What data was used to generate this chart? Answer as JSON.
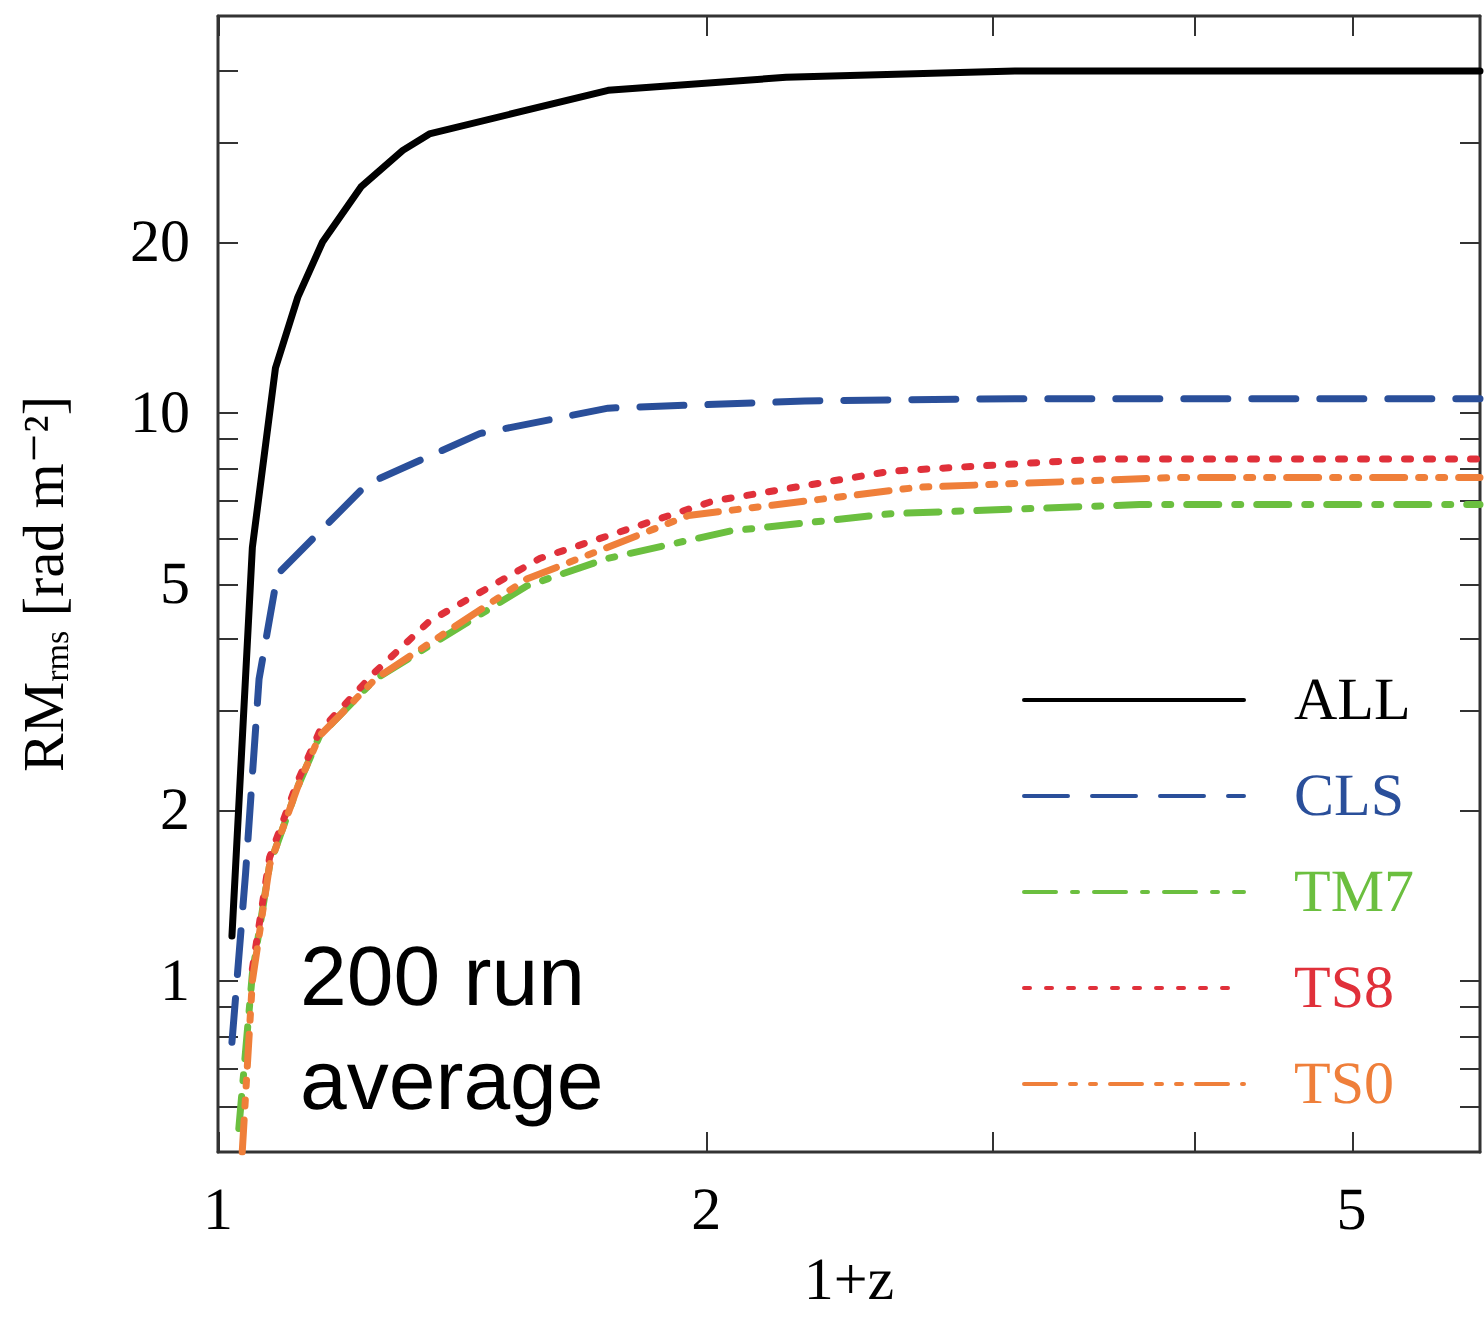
{
  "chart_data": {
    "type": "line",
    "xlabel": "1+z",
    "ylabel": "RM$_{rms}$ [rad m⁻²]",
    "log": "xy",
    "xlim": [
      1,
      6
    ],
    "ylim": [
      0.5,
      50
    ],
    "xticks": [
      1,
      2,
      {
        "value": 3,
        "label": null
      },
      {
        "value": 4,
        "label": null
      },
      5
    ],
    "yticks": [
      {
        "value": 0.6,
        "label": null
      },
      {
        "value": 0.7,
        "label": null
      },
      {
        "value": 0.8,
        "label": null
      },
      {
        "value": 0.9,
        "label": null
      },
      1,
      2,
      {
        "value": 3,
        "label": null
      },
      {
        "value": 4,
        "label": null
      },
      5,
      {
        "value": 6,
        "label": null
      },
      {
        "value": 7,
        "label": null
      },
      {
        "value": 8,
        "label": null
      },
      {
        "value": 9,
        "label": null
      },
      10,
      20,
      {
        "value": 30,
        "label": null
      },
      {
        "value": 40,
        "label": null
      }
    ],
    "grid": false,
    "legend": "bottom right",
    "marker": "none",
    "annotations": [
      "200 run average"
    ],
    "series": [
      {
        "name": "ALL",
        "color": "#000000",
        "line_style": "solid",
        "x": [
          1.02,
          1.05,
          1.085,
          1.12,
          1.16,
          1.225,
          1.3,
          1.35,
          1.74,
          2.24,
          3.1,
          6
        ],
        "values": [
          1.2,
          5.8,
          12,
          16,
          20,
          25,
          29,
          31,
          37,
          39,
          40,
          40
        ]
      },
      {
        "name": "CLS",
        "color": "#2a4f9a",
        "line_style": "dashed",
        "x": [
          1.02,
          1.04,
          1.06,
          1.088,
          1.236,
          1.45,
          1.74,
          2.3,
          3.1,
          6
        ],
        "values": [
          0.78,
          1.55,
          3.4,
          5.2,
          7.5,
          9.2,
          10.2,
          10.5,
          10.6,
          10.6
        ]
      },
      {
        "name": "TM7",
        "color": "#6bbf3f",
        "line_style": "dashdot",
        "x": [
          1.03,
          1.05,
          1.076,
          1.12,
          1.155,
          1.25,
          1.55,
          1.74,
          2.07,
          2.6,
          3.7,
          6
        ],
        "values": [
          0.55,
          1.03,
          1.6,
          2.2,
          2.7,
          3.4,
          4.96,
          5.55,
          6.2,
          6.65,
          6.9,
          6.9
        ]
      },
      {
        "name": "TS8",
        "color": "#e0303a",
        "line_style": "dotted",
        "x": [
          1.05,
          1.076,
          1.12,
          1.155,
          1.25,
          1.35,
          1.58,
          2.02,
          2.6,
          3.5,
          6
        ],
        "values": [
          1.05,
          1.65,
          2.25,
          2.75,
          3.5,
          4.3,
          5.55,
          7.0,
          7.9,
          8.3,
          8.3
        ]
      },
      {
        "name": "TS0",
        "color": "#ef7f3a",
        "line_style": "dashdotdot",
        "x": [
          1.035,
          1.05,
          1.076,
          1.12,
          1.155,
          1.25,
          1.55,
          1.95,
          2.7,
          3.9,
          6
        ],
        "values": [
          0.5,
          1.0,
          1.6,
          2.2,
          2.7,
          3.4,
          5.1,
          6.6,
          7.4,
          7.7,
          7.7
        ]
      }
    ]
  }
}
